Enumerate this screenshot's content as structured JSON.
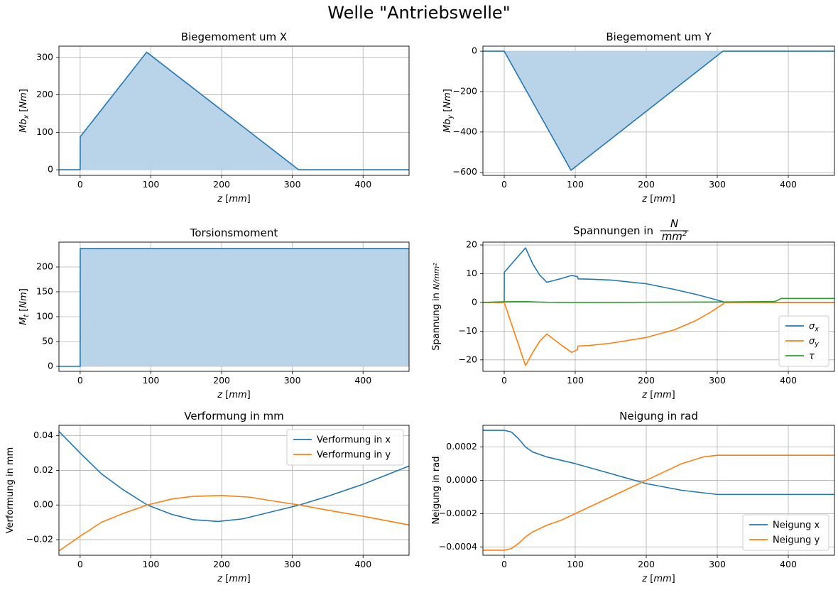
{
  "figure": {
    "title": "Welle \"Antriebswelle\""
  },
  "colors": {
    "blue": "#1f77b4",
    "orange": "#ff7f0e",
    "green": "#2ca02c",
    "fill": "#b9d4e8",
    "grid": "#b0b0b0"
  },
  "chart_data": [
    {
      "id": "mbx",
      "type": "area",
      "title": "Biegemoment um X",
      "xlabel": "z [mm]",
      "ylabel": "Mb_x [Nm]",
      "xlim": [
        -30,
        465
      ],
      "ylim": [
        -15,
        330
      ],
      "xticks": [
        0,
        100,
        200,
        300,
        400
      ],
      "yticks": [
        0,
        100,
        200,
        300
      ],
      "ytick_labels": [
        "0",
        "100",
        "200",
        "300"
      ],
      "grid": true,
      "legend": null,
      "series": [
        {
          "color": "#1f77b4",
          "fill": true,
          "x": [
            -30,
            0,
            0.1,
            94,
            309,
            310,
            465
          ],
          "y": [
            0,
            0,
            88,
            314,
            0,
            0,
            0
          ]
        }
      ]
    },
    {
      "id": "mby",
      "type": "area",
      "title": "Biegemoment um Y",
      "xlabel": "z [mm]",
      "ylabel": "Mb_y [Nm]",
      "xlim": [
        -30,
        465
      ],
      "ylim": [
        -615,
        25
      ],
      "xticks": [
        0,
        100,
        200,
        300,
        400
      ],
      "yticks": [
        0,
        -200,
        -400,
        -600
      ],
      "ytick_labels": [
        "0",
        "−200",
        "−400",
        "−600"
      ],
      "grid": true,
      "legend": null,
      "series": [
        {
          "color": "#1f77b4",
          "fill": true,
          "x": [
            -30,
            0,
            94,
            308,
            310,
            465
          ],
          "y": [
            0,
            0,
            -590,
            0,
            0,
            0
          ]
        }
      ]
    },
    {
      "id": "mt",
      "type": "area",
      "title": "Torsionsmoment",
      "xlabel": "z [mm]",
      "ylabel": "M_t [Nm]",
      "xlim": [
        -30,
        465
      ],
      "ylim": [
        -10,
        250
      ],
      "xticks": [
        0,
        100,
        200,
        300,
        400
      ],
      "yticks": [
        0,
        50,
        100,
        150,
        200
      ],
      "ytick_labels": [
        "0",
        "50",
        "100",
        "150",
        "200"
      ],
      "grid": true,
      "legend": null,
      "series": [
        {
          "color": "#1f77b4",
          "fill": true,
          "x": [
            -30,
            0,
            0.1,
            465
          ],
          "y": [
            0,
            0,
            237,
            237
          ]
        }
      ]
    },
    {
      "id": "spannung",
      "type": "line",
      "title": "Spannungen in N/mm²",
      "xlabel": "z [mm]",
      "ylabel": "Spannung in N/mm²",
      "xlim": [
        -30,
        465
      ],
      "ylim": [
        -24,
        21
      ],
      "xticks": [
        0,
        100,
        200,
        300,
        400
      ],
      "yticks": [
        20,
        10,
        0,
        -10,
        -20
      ],
      "ytick_labels": [
        "20",
        "10",
        "0",
        "−10",
        "−20"
      ],
      "grid": true,
      "legend": "lower right",
      "series": [
        {
          "name": "σx",
          "color": "#1f77b4",
          "x": [
            -30,
            0,
            0.1,
            30,
            40,
            50,
            60,
            80,
            95,
            103,
            104,
            120,
            150,
            200,
            240,
            270,
            290,
            309,
            310,
            465
          ],
          "y": [
            0,
            0,
            10.5,
            19,
            13.5,
            9.5,
            7,
            8.3,
            9.4,
            9,
            8.2,
            8.1,
            7.8,
            6.5,
            4.5,
            2.8,
            1.5,
            0.2,
            0,
            0
          ]
        },
        {
          "name": "σy",
          "color": "#ff7f0e",
          "x": [
            -30,
            0,
            30,
            40,
            50,
            60,
            80,
            95,
            103,
            104,
            120,
            150,
            200,
            240,
            270,
            290,
            309,
            310,
            465
          ],
          "y": [
            0,
            0,
            -22,
            -17.5,
            -13.5,
            -11,
            -14.8,
            -17.4,
            -16.5,
            -15.2,
            -15,
            -14.2,
            -12.2,
            -9.5,
            -6.3,
            -3.5,
            -0.4,
            0,
            0
          ]
        },
        {
          "name": "τ",
          "color": "#2ca02c",
          "x": [
            -30,
            0,
            30,
            60,
            100,
            200,
            300,
            380,
            385,
            390,
            465
          ],
          "y": [
            0,
            0.25,
            0.3,
            0.05,
            0,
            0.05,
            0.15,
            0.3,
            0.7,
            1.4,
            1.4
          ]
        }
      ]
    },
    {
      "id": "verformung",
      "type": "line",
      "title": "Verformung in mm",
      "xlabel": "",
      "ylabel": "Verformung in mm",
      "xlim": [
        -30,
        465
      ],
      "ylim": [
        -0.029,
        0.046
      ],
      "xticks": [
        0,
        100,
        200,
        300,
        400
      ],
      "yticks": [
        0.04,
        0.02,
        0,
        -0.02
      ],
      "ytick_labels": [
        "0.04",
        "0.02",
        "0.00",
        "−0.02"
      ],
      "grid": true,
      "legend": "upper right",
      "series": [
        {
          "name": "Verformung in x",
          "color": "#1f77b4",
          "x": [
            -30,
            0,
            30,
            60,
            95,
            130,
            160,
            195,
            230,
            270,
            310,
            350,
            400,
            465
          ],
          "y": [
            0.0425,
            0.03,
            0.018,
            0.009,
            0.0,
            -0.0055,
            -0.0085,
            -0.0095,
            -0.008,
            -0.004,
            0.0,
            0.005,
            0.012,
            0.0225
          ]
        },
        {
          "name": "Verformung in y",
          "color": "#ff7f0e",
          "x": [
            -30,
            0,
            30,
            60,
            95,
            130,
            160,
            200,
            240,
            270,
            310,
            350,
            400,
            465
          ],
          "y": [
            -0.0265,
            -0.018,
            -0.01,
            -0.005,
            0.0,
            0.0035,
            0.005,
            0.0055,
            0.0045,
            0.0025,
            0.0,
            -0.003,
            -0.0065,
            -0.0115
          ]
        }
      ]
    },
    {
      "id": "neigung",
      "type": "line",
      "title": "Neigung in rad",
      "xlabel": "z [mm]",
      "ylabel": "Neigung in rad",
      "xlim": [
        -30,
        465
      ],
      "ylim": [
        -0.00045,
        0.00033
      ],
      "xticks": [
        0,
        100,
        200,
        300,
        400
      ],
      "yticks": [
        0.0002,
        0,
        -0.0002,
        -0.0004
      ],
      "ytick_labels": [
        "0.0002",
        "0.0000",
        "−0.0002",
        "−0.0004"
      ],
      "grid": true,
      "legend": "lower right",
      "series": [
        {
          "name": "Neigung x",
          "color": "#1f77b4",
          "x": [
            -30,
            0,
            10,
            20,
            30,
            40,
            60,
            100,
            150,
            200,
            250,
            300,
            320,
            465
          ],
          "y": [
            0.0003,
            0.0003,
            0.00029,
            0.00025,
            0.0002,
            0.00017,
            0.00014,
            0.0001,
            4e-05,
            -2e-05,
            -6e-05,
            -8.5e-05,
            -8.5e-05,
            -8.5e-05
          ]
        },
        {
          "name": "Neigung y",
          "color": "#ff7f0e",
          "x": [
            -30,
            0,
            10,
            20,
            30,
            40,
            50,
            60,
            80,
            100,
            150,
            200,
            250,
            280,
            300,
            320,
            465
          ],
          "y": [
            -0.00042,
            -0.00042,
            -0.00041,
            -0.00038,
            -0.00034,
            -0.00031,
            -0.00029,
            -0.00027,
            -0.00024,
            -0.0002,
            -0.0001,
            0.0,
            0.0001,
            0.00014,
            0.00015,
            0.00015,
            0.00015
          ]
        }
      ]
    }
  ]
}
